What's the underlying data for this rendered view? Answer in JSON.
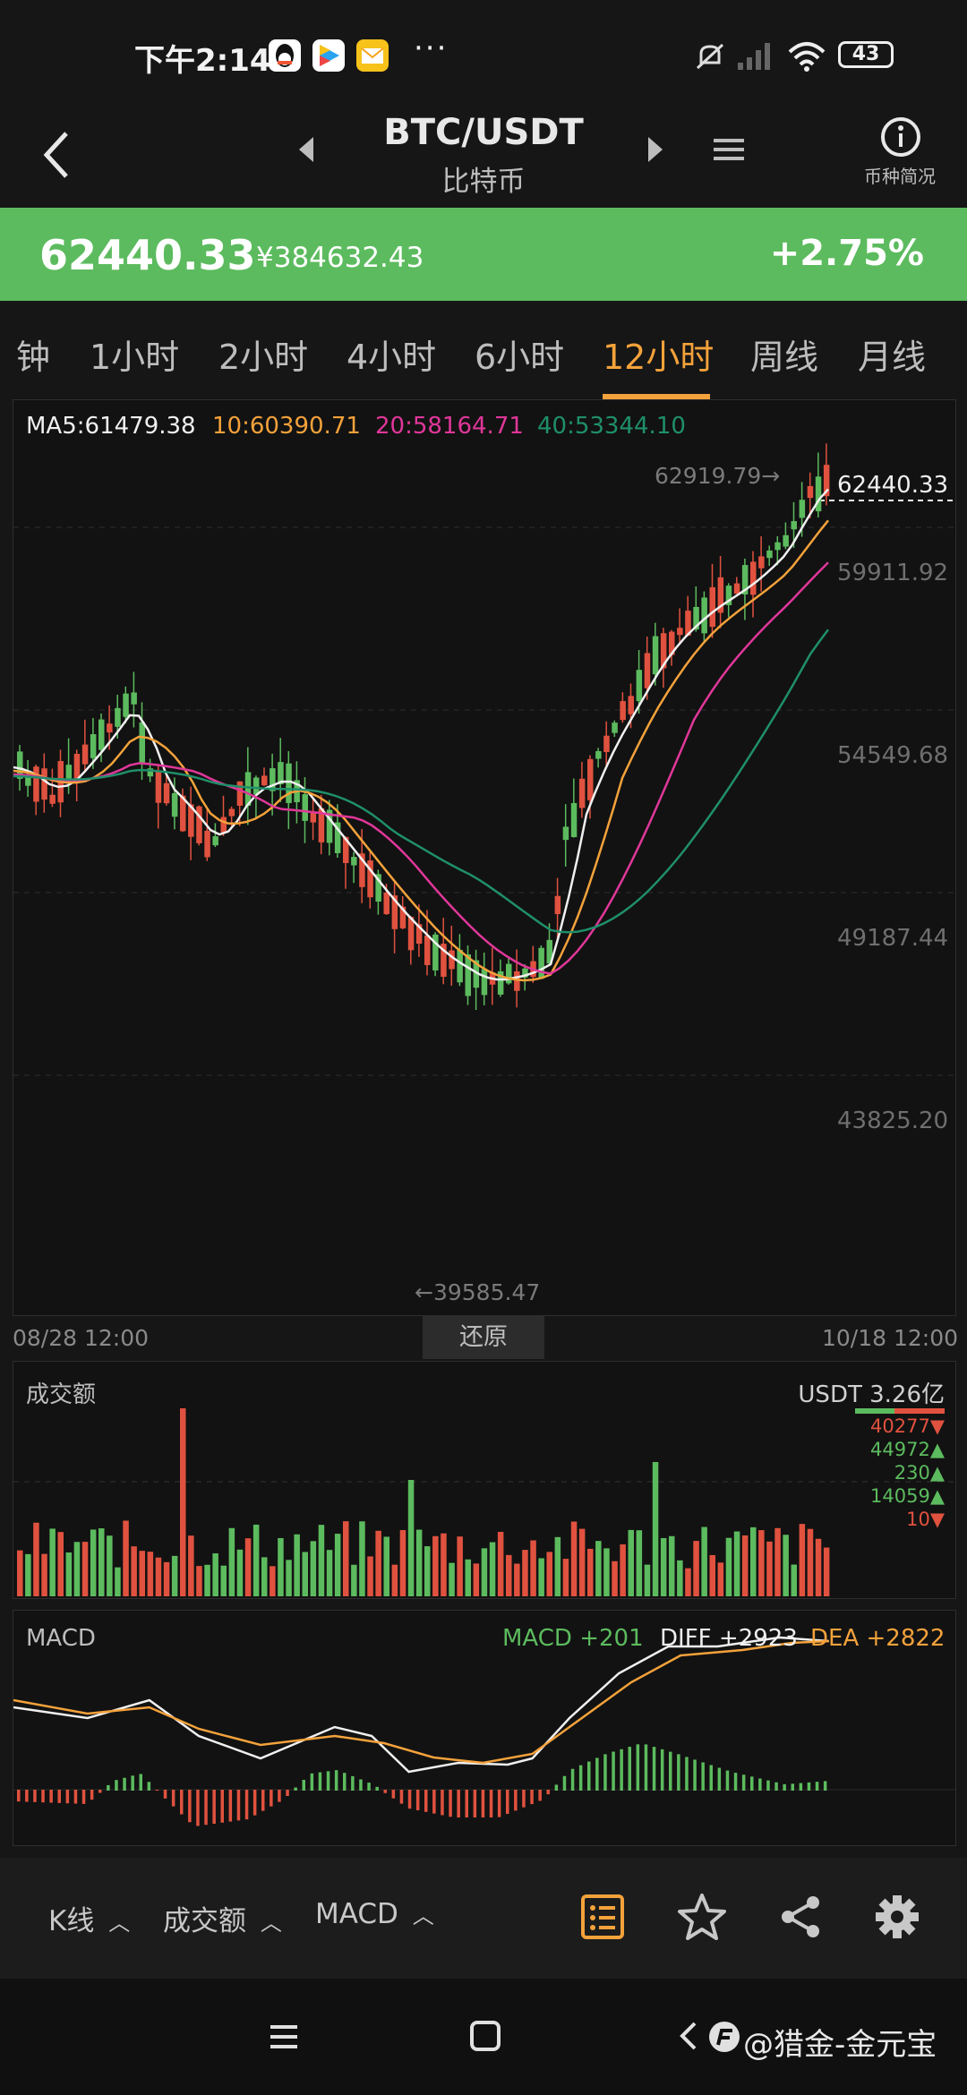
{
  "status_bar": {
    "time": "下午2:14",
    "app_icons": [
      "qq-icon",
      "video-icon",
      "mail-icon"
    ],
    "more": "···",
    "battery": "43",
    "icons": [
      "mute-icon",
      "signal-icon",
      "wifi-icon",
      "battery-icon"
    ]
  },
  "header": {
    "pair": "BTC/USDT",
    "name": "比特币",
    "info_label": "币种简况"
  },
  "price": {
    "last": "62440.33",
    "cny": "¥384632.43",
    "change": "+2.75%",
    "band_color": "#5cbb5e"
  },
  "tabs": [
    {
      "label": "钟"
    },
    {
      "label": "1小时"
    },
    {
      "label": "2小时"
    },
    {
      "label": "4小时"
    },
    {
      "label": "6小时"
    },
    {
      "label": "12小时",
      "active": true
    },
    {
      "label": "周线"
    },
    {
      "label": "月线"
    }
  ],
  "kline": {
    "ma_labels": {
      "ma5": "MA5:61479.38",
      "ma10": "10:60390.71",
      "ma20": "20:58164.71",
      "ma40": "40:53344.10"
    },
    "y_ticks": [
      "59911.92",
      "54549.68",
      "49187.44",
      "43825.20"
    ],
    "high_label": "62919.79→",
    "low_label": "←39585.47",
    "current_label": "62440.33",
    "x_start": "08/28 12:00",
    "x_end": "10/18 12:00",
    "reset_button": "还原",
    "colors": {
      "up": "#5cbb5e",
      "down": "#e0523f",
      "ma5": "#f0f0f0",
      "ma10": "#f4a23b",
      "ma20": "#e0379a",
      "ma40": "#1f8f6a"
    }
  },
  "volume": {
    "title": "成交额",
    "unit_label": "USDT 3.26亿",
    "legend": [
      {
        "value": "40277▼",
        "dir": "down"
      },
      {
        "value": "44972▲",
        "dir": "up"
      },
      {
        "value": "230▲",
        "dir": "up"
      },
      {
        "value": "14059▲",
        "dir": "up"
      },
      {
        "value": "10▼",
        "dir": "down"
      }
    ]
  },
  "macd": {
    "title": "MACD",
    "macd_value": "MACD +201",
    "diff_value": "DIFF +2923",
    "dea_value": "DEA +2822"
  },
  "toolbar": {
    "kline": "K线",
    "volume": "成交额",
    "macd": "MACD",
    "icons": [
      "list-icon",
      "star-icon",
      "share-icon",
      "settings-icon"
    ]
  },
  "navbar": {
    "watermark": "@猎金-金元宝"
  }
}
